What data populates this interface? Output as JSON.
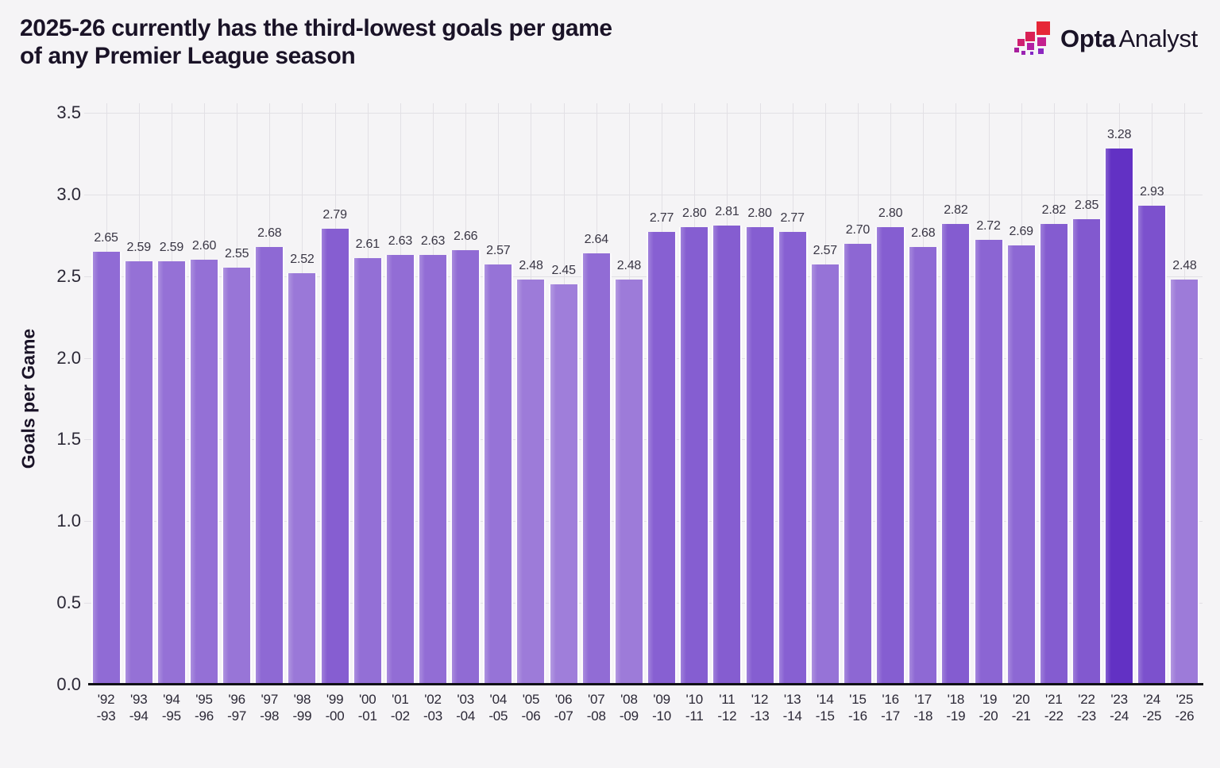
{
  "header": {
    "title_line1": "2025-26 currently has the third-lowest goals per game",
    "title_line2": "of any Premier League season"
  },
  "logo": {
    "brand_bold": "Opta",
    "brand_light": "Analyst",
    "icon": "opta-stairs-icon"
  },
  "chart_data": {
    "type": "bar",
    "title": "2025-26 currently has the third-lowest goals per game of any Premier League season",
    "ylabel": "Goals per Game",
    "xlabel": "",
    "ylim": [
      0,
      3.5
    ],
    "ytick_labels": [
      "0.0",
      "0.5",
      "1.0",
      "1.5",
      "2.0",
      "2.5",
      "3.0",
      "3.5"
    ],
    "grid": true,
    "legend_position": "none",
    "categories": [
      "'92-93",
      "'93-94",
      "'94-95",
      "'95-96",
      "'96-97",
      "'97-98",
      "'98-99",
      "'99-00",
      "'00-01",
      "'01-02",
      "'02-03",
      "'03-04",
      "'04-05",
      "'05-06",
      "'06-07",
      "'07-08",
      "'08-09",
      "'09-10",
      "'10-11",
      "'11-12",
      "'12-13",
      "'13-14",
      "'14-15",
      "'15-16",
      "'16-17",
      "'17-18",
      "'18-19",
      "'19-20",
      "'20-21",
      "'21-22",
      "'22-23",
      "'23-24",
      "'24-25",
      "'25-26"
    ],
    "values": [
      2.65,
      2.59,
      2.59,
      2.6,
      2.55,
      2.68,
      2.52,
      2.79,
      2.61,
      2.63,
      2.63,
      2.66,
      2.57,
      2.48,
      2.45,
      2.64,
      2.48,
      2.77,
      2.8,
      2.81,
      2.8,
      2.77,
      2.57,
      2.7,
      2.8,
      2.68,
      2.82,
      2.72,
      2.69,
      2.82,
      2.85,
      3.28,
      2.93,
      2.48
    ],
    "value_label_decimals": 2,
    "color_scale": {
      "min_value": 2.45,
      "min_color": "#9f7eda",
      "max_value": 3.28,
      "max_color": "#6231c4"
    }
  },
  "colors": {
    "background": "#f5f4f6",
    "gridline": "#e2e0e5",
    "axis": "#101016",
    "title_text": "#1a1327",
    "tick_text": "#2b2836",
    "value_text": "#393644",
    "bar_gap_white": "#fcfbfd",
    "logo_red": "#e62737",
    "logo_crimson": "#d92055",
    "logo_crimson2": "#cf2070",
    "logo_magenta": "#c4208f",
    "logo_pink": "#b320a3",
    "logo_pink2": "#a81f9d",
    "logo_violet": "#9a22b2",
    "logo_purple": "#8c27c0",
    "logo_purple2": "#8326c6"
  }
}
